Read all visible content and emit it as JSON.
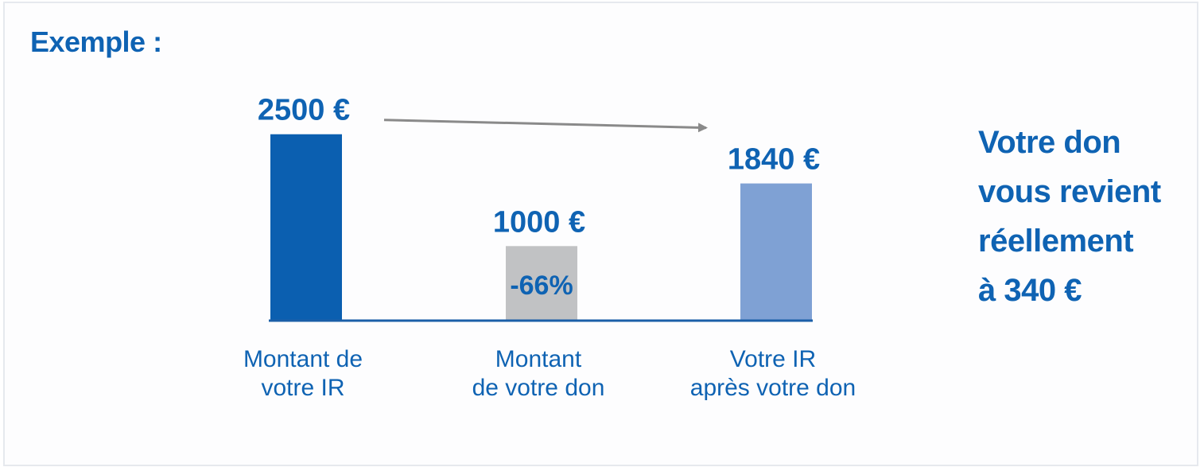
{
  "header": {
    "title": "Exemple :"
  },
  "chart_data": {
    "type": "bar",
    "categories": [
      "Montant de\nvotre IR",
      "Montant\nde votre don",
      "Votre IR\naprès votre don"
    ],
    "values": [
      2500,
      1000,
      1840
    ],
    "value_labels": [
      "2500 €",
      "1000 €",
      "1840 €"
    ],
    "bar_colors": [
      "#0b5fb0",
      "#c1c2c4",
      "#7fa1d4"
    ],
    "annotations": [
      {
        "text": "-66%",
        "category_index": 1,
        "placement": "inside-bar"
      },
      {
        "type": "arrow",
        "from_category_index": 0,
        "to_category_index": 2
      }
    ],
    "ylim": [
      0,
      2700
    ],
    "grid": false,
    "title": "",
    "xlabel": "",
    "ylabel": ""
  },
  "side_note": {
    "lines": [
      "Votre don",
      "vous revient",
      "réellement",
      "à 340 €"
    ]
  },
  "colors": {
    "accent": "#0f63b3",
    "arrow": "#8a8a8a",
    "axis": "#1b5fa8"
  }
}
